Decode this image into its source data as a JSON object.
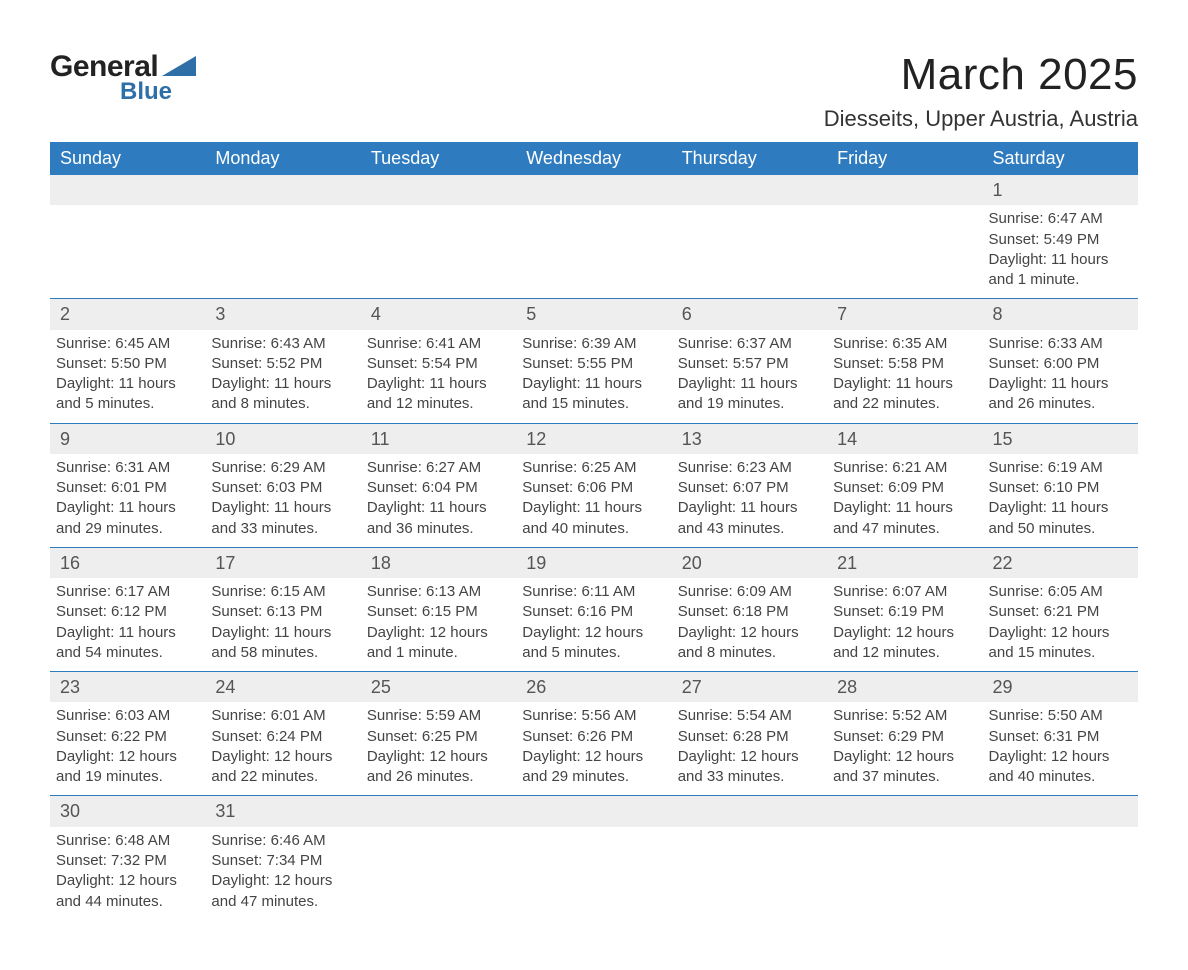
{
  "logo": {
    "general": "General",
    "blue": "Blue",
    "triangle_color": "#2f6fa7"
  },
  "title": "March 2025",
  "location": "Diesseits, Upper Austria, Austria",
  "header_bg": "#2f7bbf",
  "header_fg": "#ffffff",
  "daynum_bg": "#eeeeee",
  "border_color": "#2f7bbf",
  "text_color": "#444444",
  "weekdays": [
    "Sunday",
    "Monday",
    "Tuesday",
    "Wednesday",
    "Thursday",
    "Friday",
    "Saturday"
  ],
  "weeks": [
    {
      "nums": [
        "",
        "",
        "",
        "",
        "",
        "",
        "1"
      ],
      "cells": [
        "",
        "",
        "",
        "",
        "",
        "",
        "Sunrise: 6:47 AM\nSunset: 5:49 PM\nDaylight: 11 hours and 1 minute."
      ]
    },
    {
      "nums": [
        "2",
        "3",
        "4",
        "5",
        "6",
        "7",
        "8"
      ],
      "cells": [
        "Sunrise: 6:45 AM\nSunset: 5:50 PM\nDaylight: 11 hours and 5 minutes.",
        "Sunrise: 6:43 AM\nSunset: 5:52 PM\nDaylight: 11 hours and 8 minutes.",
        "Sunrise: 6:41 AM\nSunset: 5:54 PM\nDaylight: 11 hours and 12 minutes.",
        "Sunrise: 6:39 AM\nSunset: 5:55 PM\nDaylight: 11 hours and 15 minutes.",
        "Sunrise: 6:37 AM\nSunset: 5:57 PM\nDaylight: 11 hours and 19 minutes.",
        "Sunrise: 6:35 AM\nSunset: 5:58 PM\nDaylight: 11 hours and 22 minutes.",
        "Sunrise: 6:33 AM\nSunset: 6:00 PM\nDaylight: 11 hours and 26 minutes."
      ]
    },
    {
      "nums": [
        "9",
        "10",
        "11",
        "12",
        "13",
        "14",
        "15"
      ],
      "cells": [
        "Sunrise: 6:31 AM\nSunset: 6:01 PM\nDaylight: 11 hours and 29 minutes.",
        "Sunrise: 6:29 AM\nSunset: 6:03 PM\nDaylight: 11 hours and 33 minutes.",
        "Sunrise: 6:27 AM\nSunset: 6:04 PM\nDaylight: 11 hours and 36 minutes.",
        "Sunrise: 6:25 AM\nSunset: 6:06 PM\nDaylight: 11 hours and 40 minutes.",
        "Sunrise: 6:23 AM\nSunset: 6:07 PM\nDaylight: 11 hours and 43 minutes.",
        "Sunrise: 6:21 AM\nSunset: 6:09 PM\nDaylight: 11 hours and 47 minutes.",
        "Sunrise: 6:19 AM\nSunset: 6:10 PM\nDaylight: 11 hours and 50 minutes."
      ]
    },
    {
      "nums": [
        "16",
        "17",
        "18",
        "19",
        "20",
        "21",
        "22"
      ],
      "cells": [
        "Sunrise: 6:17 AM\nSunset: 6:12 PM\nDaylight: 11 hours and 54 minutes.",
        "Sunrise: 6:15 AM\nSunset: 6:13 PM\nDaylight: 11 hours and 58 minutes.",
        "Sunrise: 6:13 AM\nSunset: 6:15 PM\nDaylight: 12 hours and 1 minute.",
        "Sunrise: 6:11 AM\nSunset: 6:16 PM\nDaylight: 12 hours and 5 minutes.",
        "Sunrise: 6:09 AM\nSunset: 6:18 PM\nDaylight: 12 hours and 8 minutes.",
        "Sunrise: 6:07 AM\nSunset: 6:19 PM\nDaylight: 12 hours and 12 minutes.",
        "Sunrise: 6:05 AM\nSunset: 6:21 PM\nDaylight: 12 hours and 15 minutes."
      ]
    },
    {
      "nums": [
        "23",
        "24",
        "25",
        "26",
        "27",
        "28",
        "29"
      ],
      "cells": [
        "Sunrise: 6:03 AM\nSunset: 6:22 PM\nDaylight: 12 hours and 19 minutes.",
        "Sunrise: 6:01 AM\nSunset: 6:24 PM\nDaylight: 12 hours and 22 minutes.",
        "Sunrise: 5:59 AM\nSunset: 6:25 PM\nDaylight: 12 hours and 26 minutes.",
        "Sunrise: 5:56 AM\nSunset: 6:26 PM\nDaylight: 12 hours and 29 minutes.",
        "Sunrise: 5:54 AM\nSunset: 6:28 PM\nDaylight: 12 hours and 33 minutes.",
        "Sunrise: 5:52 AM\nSunset: 6:29 PM\nDaylight: 12 hours and 37 minutes.",
        "Sunrise: 5:50 AM\nSunset: 6:31 PM\nDaylight: 12 hours and 40 minutes."
      ]
    },
    {
      "nums": [
        "30",
        "31",
        "",
        "",
        "",
        "",
        ""
      ],
      "cells": [
        "Sunrise: 6:48 AM\nSunset: 7:32 PM\nDaylight: 12 hours and 44 minutes.",
        "Sunrise: 6:46 AM\nSunset: 7:34 PM\nDaylight: 12 hours and 47 minutes.",
        "",
        "",
        "",
        "",
        ""
      ]
    }
  ]
}
